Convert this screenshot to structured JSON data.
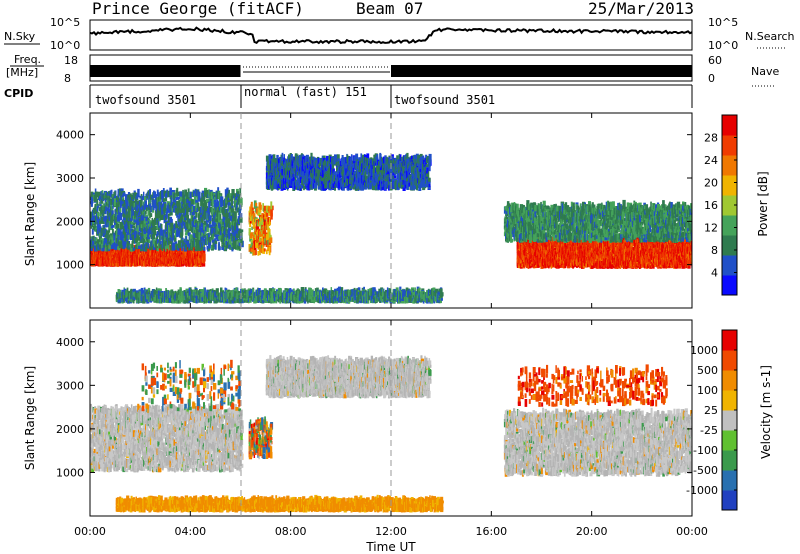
{
  "header": {
    "station": "Prince George (fitACF)",
    "beam": "Beam 07",
    "date": "25/Mar/2013"
  },
  "strip_labels": {
    "nsky": "N.Sky",
    "freq_line1": "Freq.",
    "freq_line2": "[MHz]",
    "cpid": "CPID",
    "nsearch": "N.Search",
    "nave": "Nave",
    "nsky_ticks": [
      "10^5",
      "10^0"
    ],
    "nsearch_ticks": [
      "10^5",
      "10^0"
    ],
    "freq_ticks": [
      "18",
      "8"
    ],
    "nave_ticks": [
      "60",
      "0"
    ]
  },
  "cpid_segments": [
    {
      "label": "twofsound 3501",
      "start_hour": 0,
      "end_hour": 6
    },
    {
      "label": "normal (fast) 151",
      "start_hour": 6,
      "end_hour": 12
    },
    {
      "label": "twofsound 3501",
      "start_hour": 12,
      "end_hour": 24
    }
  ],
  "chart_data": [
    {
      "type": "heatmap",
      "panel": "power",
      "xlabel": "",
      "ylabel": "Slant Range [km]",
      "xlim": [
        0,
        24
      ],
      "ylim": [
        0,
        4500
      ],
      "y_ticks": [
        1000,
        2000,
        3000,
        4000
      ],
      "colorbar": {
        "label": "Power [dB]",
        "ticks": [
          "28",
          "24",
          "20",
          "16",
          "12",
          "8",
          "4"
        ],
        "colors": [
          "#0a0aff",
          "#2050c8",
          "#2f7b4f",
          "#45a35a",
          "#a0c832",
          "#f0b400",
          "#f07800",
          "#f03c00",
          "#e60000"
        ]
      },
      "regions": [
        {
          "desc": "strong echo band",
          "hours": [
            0,
            4.5
          ],
          "range_km": [
            950,
            1300
          ],
          "power_db": 28
        },
        {
          "desc": "scatter",
          "hours": [
            0,
            6
          ],
          "range_km": [
            1300,
            2600
          ],
          "power_db": 8
        },
        {
          "desc": "arc",
          "hours": [
            7,
            13.5
          ],
          "range_km": [
            2700,
            3400
          ],
          "power_db": 6
        },
        {
          "desc": "strong echo band",
          "hours": [
            17,
            24
          ],
          "range_km": [
            900,
            1500
          ],
          "power_db": 28
        },
        {
          "desc": "scatter",
          "hours": [
            16.5,
            24
          ],
          "range_km": [
            1500,
            2300
          ],
          "power_db": 10
        }
      ]
    },
    {
      "type": "heatmap",
      "panel": "velocity",
      "xlabel": "Time UT",
      "ylabel": "Slant Range [km]",
      "xlim": [
        0,
        24
      ],
      "ylim": [
        0,
        4500
      ],
      "x_ticks": [
        "00:00",
        "04:00",
        "08:00",
        "12:00",
        "16:00",
        "20:00",
        "00:00"
      ],
      "y_ticks": [
        1000,
        2000,
        3000,
        4000
      ],
      "colorbar": {
        "label": "Velocity [m s-1]",
        "ticks": [
          "1000",
          "500",
          "100",
          "25",
          "-25",
          "-100",
          "-500",
          "-1000"
        ],
        "colors": [
          "#2040c0",
          "#2870b0",
          "#3a9a4c",
          "#60c030",
          "#c0c0c0",
          "#f0b400",
          "#f08c00",
          "#f04a00",
          "#e60000"
        ]
      },
      "regions": [
        {
          "desc": "ground scatter",
          "hours": [
            0,
            6
          ],
          "range_km": [
            1000,
            2400
          ],
          "velocity": 0
        },
        {
          "desc": "ground scatter arc",
          "hours": [
            7,
            13.5
          ],
          "range_km": [
            2700,
            3500
          ],
          "velocity": 0
        },
        {
          "desc": "ground scatter",
          "hours": [
            16.5,
            24
          ],
          "range_km": [
            900,
            2300
          ],
          "velocity": 0
        },
        {
          "desc": "mixed echoes",
          "hours": [
            6.3,
            7.2
          ],
          "range_km": [
            1300,
            2100
          ],
          "velocity": -300
        }
      ]
    }
  ]
}
